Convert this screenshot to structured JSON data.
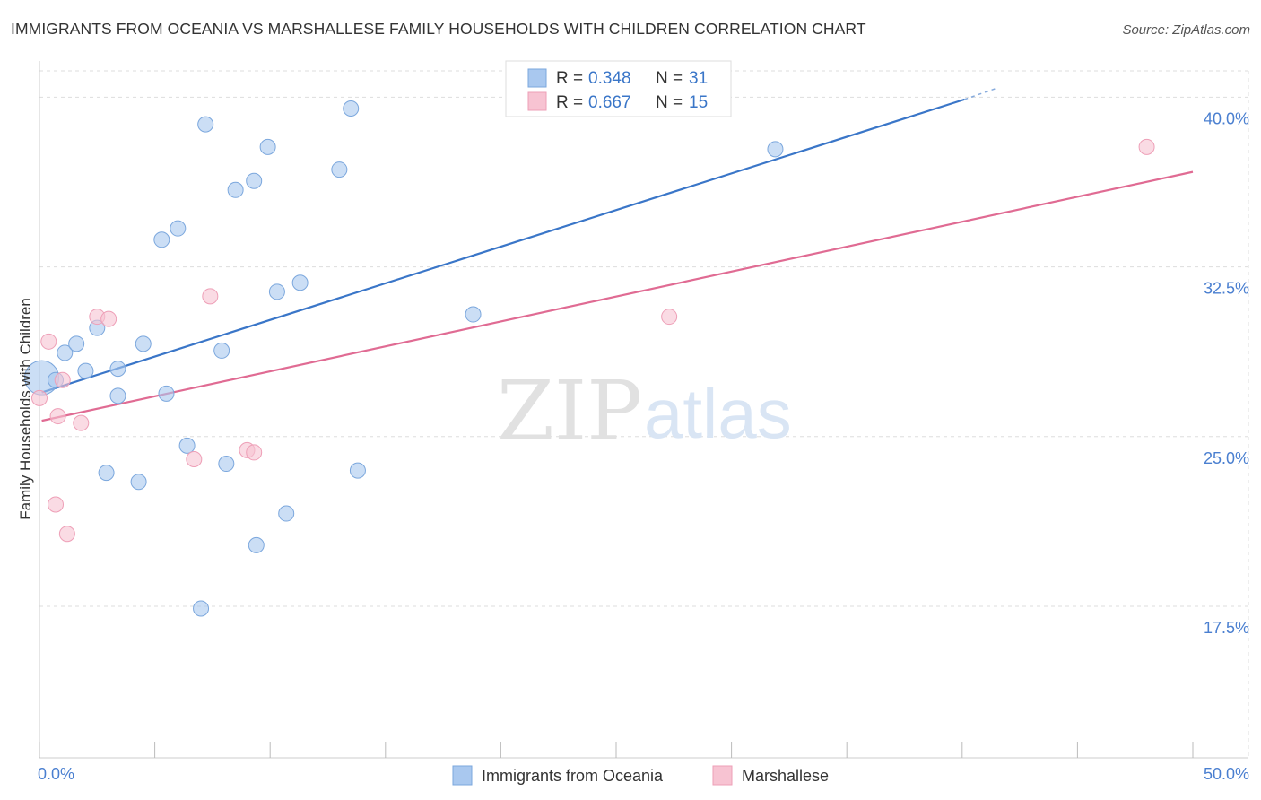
{
  "title": "IMMIGRANTS FROM OCEANIA VS MARSHALLESE FAMILY HOUSEHOLDS WITH CHILDREN CORRELATION CHART",
  "source": "Source: ZipAtlas.com",
  "watermark": {
    "zip": "ZIP",
    "atlas": "atlas"
  },
  "chart_data": {
    "type": "scatter",
    "title": "IMMIGRANTS FROM OCEANIA VS MARSHALLESE FAMILY HOUSEHOLDS WITH CHILDREN CORRELATION CHART",
    "xlabel": "",
    "ylabel": "Family Households with Children",
    "xlim": [
      0,
      50
    ],
    "ylim": [
      10.8,
      41.6
    ],
    "x_ticks": [
      0,
      5,
      10,
      15,
      20,
      25,
      30,
      35,
      40,
      45,
      50
    ],
    "x_tick_labels": [
      {
        "value": 0,
        "label": "0.0%"
      },
      {
        "value": 50,
        "label": "50.0%"
      }
    ],
    "y_ticks": [
      {
        "value": 17.5,
        "label": "17.5%"
      },
      {
        "value": 25.0,
        "label": "25.0%"
      },
      {
        "value": 32.5,
        "label": "32.5%"
      },
      {
        "value": 40.0,
        "label": "40.0%"
      }
    ],
    "grid": true,
    "legend_stats": [
      {
        "r_label": "R =",
        "r_value": "0.348",
        "n_label": "N =",
        "n_value": "31"
      },
      {
        "r_label": "R =",
        "r_value": "0.667",
        "n_label": "N =",
        "n_value": "15"
      }
    ],
    "series": [
      {
        "name": "Immigrants from Oceania",
        "color": "#a9c8ef",
        "stroke": "#7ba7dd",
        "line_color": "#3a76c8",
        "trend": {
          "x": [
            0.1,
            40.1
          ],
          "y": [
            26.95,
            39.9
          ]
        },
        "trend_dash": {
          "x": [
            40.1,
            41.5
          ],
          "y": [
            39.9,
            40.4
          ]
        },
        "points": [
          {
            "x": 0.1,
            "y": 27.6,
            "size": "large"
          },
          {
            "x": 0.7,
            "y": 27.5
          },
          {
            "x": 1.1,
            "y": 28.7
          },
          {
            "x": 1.6,
            "y": 29.1
          },
          {
            "x": 2.0,
            "y": 27.9
          },
          {
            "x": 2.5,
            "y": 29.8
          },
          {
            "x": 2.9,
            "y": 23.4
          },
          {
            "x": 3.4,
            "y": 28.0
          },
          {
            "x": 3.4,
            "y": 26.8
          },
          {
            "x": 4.3,
            "y": 23.0
          },
          {
            "x": 4.5,
            "y": 29.1
          },
          {
            "x": 5.3,
            "y": 33.7
          },
          {
            "x": 5.5,
            "y": 26.9
          },
          {
            "x": 6.0,
            "y": 34.2
          },
          {
            "x": 6.4,
            "y": 24.6
          },
          {
            "x": 7.0,
            "y": 17.4
          },
          {
            "x": 7.2,
            "y": 38.8
          },
          {
            "x": 7.9,
            "y": 28.8
          },
          {
            "x": 8.1,
            "y": 23.8
          },
          {
            "x": 8.5,
            "y": 35.9
          },
          {
            "x": 9.3,
            "y": 36.3
          },
          {
            "x": 9.4,
            "y": 20.2
          },
          {
            "x": 9.9,
            "y": 37.8
          },
          {
            "x": 10.3,
            "y": 31.4
          },
          {
            "x": 10.7,
            "y": 21.6
          },
          {
            "x": 11.3,
            "y": 31.8
          },
          {
            "x": 13.0,
            "y": 36.8
          },
          {
            "x": 13.5,
            "y": 39.5
          },
          {
            "x": 13.8,
            "y": 23.5
          },
          {
            "x": 18.8,
            "y": 30.4
          },
          {
            "x": 31.9,
            "y": 37.7
          }
        ]
      },
      {
        "name": "Marshallese",
        "color": "#f7c3d2",
        "stroke": "#ee9fb7",
        "line_color": "#e06b93",
        "trend": {
          "x": [
            0.1,
            50.0
          ],
          "y": [
            25.7,
            36.7
          ]
        },
        "points": [
          {
            "x": 0.0,
            "y": 26.7
          },
          {
            "x": 0.4,
            "y": 29.2
          },
          {
            "x": 0.7,
            "y": 22.0
          },
          {
            "x": 0.8,
            "y": 25.9
          },
          {
            "x": 1.0,
            "y": 27.5
          },
          {
            "x": 1.2,
            "y": 20.7
          },
          {
            "x": 1.8,
            "y": 25.6
          },
          {
            "x": 2.5,
            "y": 30.3
          },
          {
            "x": 3.0,
            "y": 30.2
          },
          {
            "x": 6.7,
            "y": 24.0
          },
          {
            "x": 7.4,
            "y": 31.2
          },
          {
            "x": 9.0,
            "y": 24.4
          },
          {
            "x": 9.3,
            "y": 24.3
          },
          {
            "x": 27.3,
            "y": 30.3
          },
          {
            "x": 48.0,
            "y": 37.8
          }
        ]
      }
    ]
  }
}
